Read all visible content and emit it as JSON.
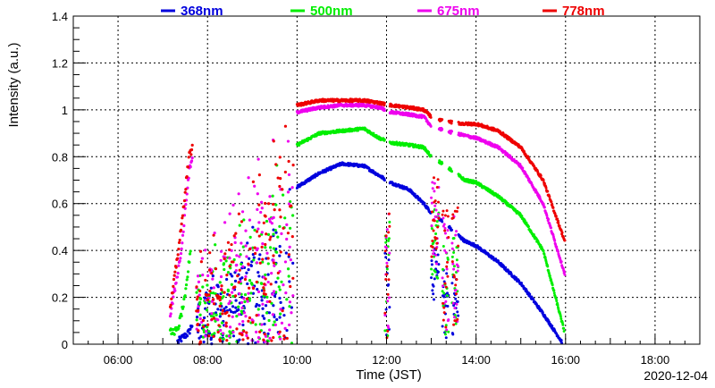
{
  "chart_data": {
    "type": "scatter",
    "xlabel": "Time (JST)",
    "ylabel": "Intensity (a.u.)",
    "date": "2020-12-04",
    "xlim": [
      "05:00",
      "19:00"
    ],
    "ylim": [
      0,
      1.4
    ],
    "x_ticks": [
      "06:00",
      "08:00",
      "10:00",
      "12:00",
      "14:00",
      "16:00",
      "18:00"
    ],
    "y_ticks": [
      "0",
      "0.2",
      "0.4",
      "0.6",
      "0.8",
      "1",
      "1.2",
      "1.4"
    ],
    "grid": true,
    "legend_position": "top",
    "series": [
      {
        "name": "368nm",
        "color": "#0000dd",
        "points": [
          [
            "07:20",
            0.01
          ],
          [
            "07:35",
            0.05
          ],
          [
            "07:40",
            0.09
          ],
          [
            "10:00",
            0.67
          ],
          [
            "10:30",
            0.73
          ],
          [
            "11:00",
            0.77
          ],
          [
            "11:30",
            0.76
          ],
          [
            "11:50",
            0.72
          ],
          [
            "12:05",
            0.69
          ],
          [
            "12:30",
            0.66
          ],
          [
            "12:50",
            0.6
          ],
          [
            "13:00",
            0.56
          ],
          [
            "13:20",
            0.51
          ],
          [
            "13:45",
            0.44
          ],
          [
            "14:00",
            0.42
          ],
          [
            "14:30",
            0.35
          ],
          [
            "15:00",
            0.26
          ],
          [
            "15:30",
            0.13
          ],
          [
            "15:55",
            0.01
          ]
        ]
      },
      {
        "name": "500nm",
        "color": "#00ee00",
        "points": [
          [
            "07:10",
            0.05
          ],
          [
            "07:20",
            0.06
          ],
          [
            "07:30",
            0.2
          ],
          [
            "07:38",
            0.43
          ],
          [
            "10:00",
            0.85
          ],
          [
            "10:30",
            0.9
          ],
          [
            "11:00",
            0.91
          ],
          [
            "11:30",
            0.92
          ],
          [
            "11:50",
            0.88
          ],
          [
            "12:05",
            0.86
          ],
          [
            "12:30",
            0.85
          ],
          [
            "12:50",
            0.84
          ],
          [
            "13:00",
            0.8
          ],
          [
            "13:20",
            0.76
          ],
          [
            "13:45",
            0.7
          ],
          [
            "14:00",
            0.69
          ],
          [
            "14:30",
            0.63
          ],
          [
            "15:00",
            0.55
          ],
          [
            "15:30",
            0.4
          ],
          [
            "15:58",
            0.06
          ]
        ]
      },
      {
        "name": "675nm",
        "color": "#ee00ee",
        "points": [
          [
            "07:10",
            0.12
          ],
          [
            "07:25",
            0.4
          ],
          [
            "07:35",
            0.73
          ],
          [
            "07:40",
            0.8
          ],
          [
            "10:00",
            0.99
          ],
          [
            "10:30",
            1.01
          ],
          [
            "11:00",
            1.02
          ],
          [
            "11:30",
            1.02
          ],
          [
            "11:50",
            1.01
          ],
          [
            "12:05",
            0.99
          ],
          [
            "12:30",
            0.98
          ],
          [
            "12:50",
            0.97
          ],
          [
            "13:00",
            0.93
          ],
          [
            "13:20",
            0.91
          ],
          [
            "13:45",
            0.89
          ],
          [
            "14:00",
            0.88
          ],
          [
            "14:30",
            0.84
          ],
          [
            "15:00",
            0.76
          ],
          [
            "15:30",
            0.6
          ],
          [
            "15:59",
            0.3
          ]
        ]
      },
      {
        "name": "778nm",
        "color": "#ee0000",
        "points": [
          [
            "07:10",
            0.15
          ],
          [
            "07:25",
            0.5
          ],
          [
            "07:35",
            0.8
          ],
          [
            "07:40",
            0.84
          ],
          [
            "10:00",
            1.02
          ],
          [
            "10:30",
            1.04
          ],
          [
            "11:00",
            1.04
          ],
          [
            "11:30",
            1.04
          ],
          [
            "11:50",
            1.03
          ],
          [
            "12:05",
            1.02
          ],
          [
            "12:30",
            1.01
          ],
          [
            "12:50",
            1.0
          ],
          [
            "13:00",
            0.97
          ],
          [
            "13:20",
            0.95
          ],
          [
            "13:45",
            0.94
          ],
          [
            "14:00",
            0.94
          ],
          [
            "14:30",
            0.91
          ],
          [
            "15:00",
            0.84
          ],
          [
            "15:30",
            0.7
          ],
          [
            "15:59",
            0.44
          ]
        ]
      }
    ]
  }
}
